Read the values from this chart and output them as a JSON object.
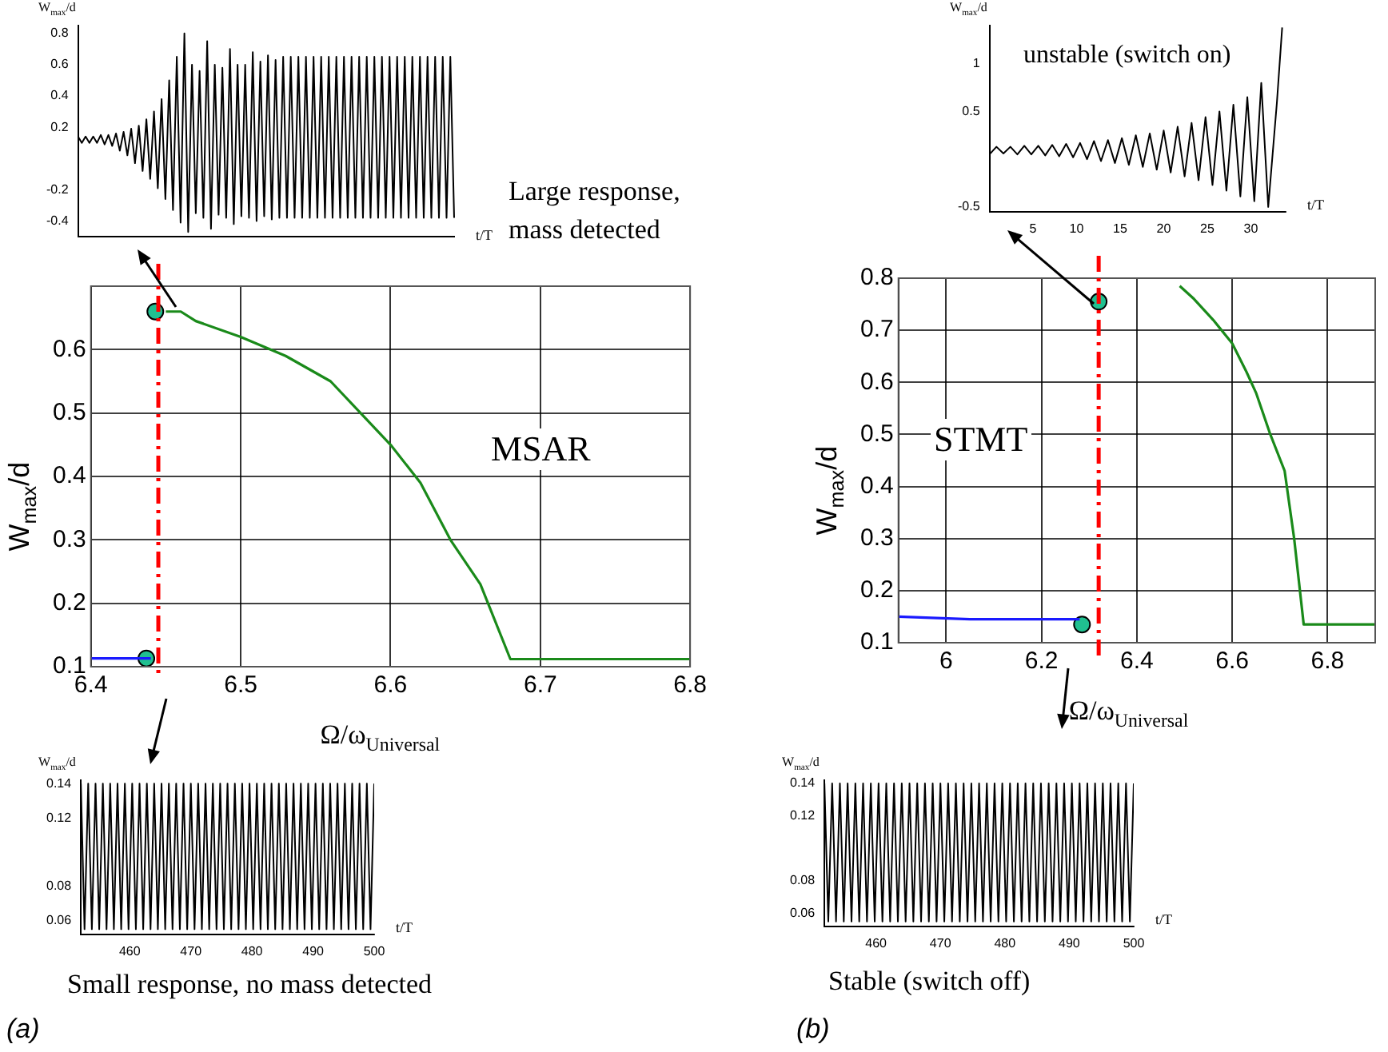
{
  "chart_data": [
    {
      "type": "line",
      "ylabel": "W$_{max}$/d",
      "xlabel": "t/T",
      "categories": [
        null,
        null,
        null,
        null,
        null,
        null,
        null,
        null,
        null,
        null,
        null,
        null,
        null,
        null,
        null,
        null,
        null,
        null,
        null,
        null,
        null,
        null,
        null,
        null,
        null,
        null,
        null,
        null,
        null,
        null,
        null,
        null,
        null,
        null,
        null,
        null,
        null,
        null,
        null,
        null,
        null,
        null,
        null,
        null,
        null,
        null,
        null,
        null,
        null,
        null,
        null,
        null,
        null,
        null,
        null,
        null,
        null,
        null,
        null,
        null,
        null,
        null,
        null,
        null,
        null,
        null,
        null,
        null,
        null,
        null,
        null,
        null,
        null,
        null,
        null,
        null,
        null,
        null,
        null,
        null,
        null,
        null,
        null,
        null,
        null,
        null,
        null,
        null,
        null,
        null,
        null,
        null,
        null,
        null,
        null,
        null,
        null,
        null,
        null,
        null
      ],
      "series": [
        {
          "color": "#000000",
          "marker": "none",
          "values": [
            0.14,
            0.1,
            0.14,
            0.1,
            0.14,
            0.1,
            0.15,
            0.09,
            0.15,
            0.08,
            0.16,
            0.05,
            0.17,
            0.02,
            0.19,
            -0.03,
            0.21,
            -0.08,
            0.25,
            -0.13,
            0.3,
            -0.19,
            0.38,
            -0.26,
            0.5,
            -0.33,
            0.65,
            -0.41,
            0.8,
            -0.47,
            0.6,
            -0.35,
            0.56,
            -0.38,
            0.75,
            -0.45,
            0.6,
            -0.36,
            0.58,
            -0.38,
            0.7,
            -0.42,
            0.6,
            -0.37,
            0.6,
            -0.38,
            0.68,
            -0.4,
            0.62,
            -0.37,
            0.66,
            -0.39,
            0.63,
            -0.38,
            0.65,
            -0.38,
            0.65,
            -0.38,
            0.65,
            -0.38,
            0.65,
            -0.38,
            0.65,
            -0.38,
            0.65,
            -0.38,
            0.65,
            -0.38,
            0.65,
            -0.38,
            0.65,
            -0.38,
            0.65,
            -0.38,
            0.65,
            -0.38,
            0.65,
            -0.38,
            0.65,
            -0.38,
            0.65,
            -0.38,
            0.65,
            -0.38,
            0.65,
            -0.38,
            0.65,
            -0.38,
            0.65,
            -0.38,
            0.65,
            -0.38,
            0.65,
            -0.38,
            0.65,
            -0.38,
            0.65,
            -0.38,
            0.65,
            -0.38
          ]
        }
      ],
      "ylim": [
        -0.5,
        0.85
      ],
      "yticks": [
        -0.4,
        -0.2,
        0.2,
        0.4,
        0.6,
        0.8
      ],
      "tick_labels": "y",
      "grid": false,
      "legend": false,
      "annotations": [
        "Large response, mass detected"
      ]
    },
    {
      "type": "line",
      "xlabel": "Ω/ω$_{Universal}$",
      "ylabel": "W$_{max}$/d",
      "series": [
        {
          "color": "#1a1aff",
          "marker": "none",
          "x": [
            6.4,
            6.44
          ],
          "values": [
            0.113,
            0.113
          ]
        },
        {
          "color": "#1a8a1a",
          "marker": "none",
          "x": [
            6.45,
            6.46,
            6.47,
            6.5,
            6.53,
            6.56,
            6.6,
            6.62,
            6.64,
            6.66,
            6.68,
            6.8
          ],
          "values": [
            0.66,
            0.66,
            0.645,
            0.62,
            0.59,
            0.55,
            0.45,
            0.39,
            0.3,
            0.23,
            0.112,
            0.112
          ]
        },
        {
          "type": "scatter",
          "color": "#20c090",
          "marker": "circle",
          "x": [
            6.443,
            6.437
          ],
          "values": [
            0.66,
            0.113
          ]
        }
      ],
      "xlim": [
        6.4,
        6.8
      ],
      "xticks": [
        6.4,
        6.5,
        6.6,
        6.7,
        6.8
      ],
      "ylim": [
        0.1,
        0.7
      ],
      "yticks": [
        0.1,
        0.2,
        0.3,
        0.4,
        0.5,
        0.6
      ],
      "grid": true,
      "legend": false,
      "ref_lines": [
        {
          "axis": "x",
          "value": 6.445,
          "color": "#ff0000",
          "line_style": "dashed"
        }
      ],
      "annotations": [
        "MSAR"
      ]
    },
    {
      "type": "line",
      "ylabel": "W$_{max}$/d",
      "xlabel": "t/T",
      "series": [
        {
          "color": "#000000",
          "marker": "none",
          "x": [
            452,
            452.6,
            453.2,
            453.8,
            454.4,
            455,
            455.6,
            456.2,
            456.8,
            457.4,
            458,
            458.6,
            459.2,
            459.8,
            460.4,
            461,
            461.6,
            462.2,
            462.8,
            463.4,
            464,
            464.6,
            465.2,
            465.8,
            466.4,
            467,
            467.6,
            468.2,
            468.8,
            469.4,
            470,
            470.6,
            471.2,
            471.8,
            472.4,
            473,
            473.6,
            474.2,
            474.8,
            475.4,
            476,
            476.6,
            477.2,
            477.8,
            478.4,
            479,
            479.6,
            480.2,
            480.8,
            481.4,
            482,
            482.6,
            483.2,
            483.8,
            484.4,
            485,
            485.6,
            486.2,
            486.8,
            487.4,
            488,
            488.6,
            489.2,
            489.8,
            490.4,
            491,
            491.6,
            492.2,
            492.8,
            493.4,
            494,
            494.6,
            495.2,
            495.8,
            496.4,
            497,
            497.6,
            498.2,
            498.8,
            499.4,
            500
          ],
          "values": [
            0.14,
            0.055,
            0.14,
            0.055,
            0.14,
            0.055,
            0.14,
            0.055,
            0.14,
            0.055,
            0.14,
            0.055,
            0.14,
            0.055,
            0.14,
            0.055,
            0.14,
            0.055,
            0.14,
            0.055,
            0.14,
            0.055,
            0.14,
            0.055,
            0.14,
            0.055,
            0.14,
            0.055,
            0.14,
            0.055,
            0.14,
            0.055,
            0.14,
            0.055,
            0.14,
            0.055,
            0.14,
            0.055,
            0.14,
            0.055,
            0.14,
            0.055,
            0.14,
            0.055,
            0.14,
            0.055,
            0.14,
            0.055,
            0.14,
            0.055,
            0.14,
            0.055,
            0.14,
            0.055,
            0.14,
            0.055,
            0.14,
            0.055,
            0.14,
            0.055,
            0.14,
            0.055,
            0.14,
            0.055,
            0.14,
            0.055,
            0.14,
            0.055,
            0.14,
            0.055,
            0.14,
            0.055,
            0.14,
            0.055,
            0.14,
            0.055,
            0.14,
            0.055,
            0.14,
            0.055,
            0.14
          ]
        }
      ],
      "xlim": [
        452,
        500
      ],
      "xticks": [
        460,
        470,
        480,
        490,
        500
      ],
      "ylim": [
        0.052,
        0.142
      ],
      "yticks": [
        0.06,
        0.08,
        0.12,
        0.14
      ],
      "grid": false,
      "legend": false,
      "annotations": [
        "Small response, no mass detected",
        "(a)"
      ]
    },
    {
      "type": "line",
      "ylabel": "W$_{max}$/d",
      "xlabel": "t/T",
      "series": [
        {
          "color": "#000000",
          "marker": "none",
          "x": [
            0,
            0.8,
            1.6,
            2.4,
            3.2,
            4,
            4.8,
            5.6,
            6.4,
            7.2,
            8,
            8.8,
            9.6,
            10.4,
            11.2,
            12,
            12.8,
            13.6,
            14.4,
            15.2,
            16,
            16.8,
            17.6,
            18.4,
            19.2,
            20,
            20.8,
            21.6,
            22.4,
            23.2,
            24,
            24.8,
            25.6,
            26.4,
            27.2,
            28,
            28.8,
            29.6,
            30.4,
            31.2,
            32,
            33,
            33.6
          ],
          "values": [
            0.05,
            0.13,
            0.06,
            0.13,
            0.05,
            0.14,
            0.05,
            0.14,
            0.04,
            0.15,
            0.03,
            0.16,
            0.02,
            0.17,
            0,
            0.19,
            -0.02,
            0.2,
            -0.04,
            0.22,
            -0.06,
            0.25,
            -0.08,
            0.27,
            -0.11,
            0.3,
            -0.14,
            0.34,
            -0.18,
            0.38,
            -0.22,
            0.44,
            -0.27,
            0.5,
            -0.33,
            0.57,
            -0.39,
            0.65,
            -0.44,
            0.8,
            -0.5,
            0.6,
            1.38
          ]
        }
      ],
      "xlim": [
        0,
        34
      ],
      "xticks": [
        5,
        10,
        15,
        20,
        25,
        30
      ],
      "ylim": [
        -0.55,
        1.4
      ],
      "yticks": [
        -0.5,
        0.5,
        1
      ],
      "grid": false,
      "legend": false,
      "annotations": [
        "unstable (switch on)"
      ]
    },
    {
      "type": "line",
      "xlabel": "Ω/ω$_{Universal}$",
      "ylabel": "W$_{max}$/d",
      "series": [
        {
          "color": "#1a1aff",
          "marker": "none",
          "x": [
            5.9,
            6.05,
            6.28
          ],
          "values": [
            0.15,
            0.145,
            0.145
          ]
        },
        {
          "color": "#1a8a1a",
          "marker": "none",
          "x": [
            6.49,
            6.52,
            6.56,
            6.6,
            6.63,
            6.65,
            6.68,
            6.71,
            6.73,
            6.75,
            6.9
          ],
          "values": [
            0.785,
            0.76,
            0.72,
            0.675,
            0.62,
            0.58,
            0.5,
            0.43,
            0.3,
            0.135,
            0.135
          ]
        },
        {
          "type": "scatter",
          "color": "#20c090",
          "marker": "circle",
          "x": [
            6.32,
            6.285
          ],
          "values": [
            0.755,
            0.135
          ]
        }
      ],
      "xlim": [
        5.9,
        6.9
      ],
      "xticks": [
        6,
        6.2,
        6.4,
        6.6,
        6.8
      ],
      "ylim": [
        0.1,
        0.8
      ],
      "yticks": [
        0.1,
        0.2,
        0.3,
        0.4,
        0.5,
        0.6,
        0.7,
        0.8
      ],
      "grid": true,
      "legend": false,
      "ref_lines": [
        {
          "axis": "x",
          "value": 6.32,
          "color": "#ff0000",
          "line_style": "dashed"
        }
      ],
      "annotations": [
        "STMT"
      ]
    },
    {
      "type": "line",
      "ylabel": "W$_{max}$/d",
      "xlabel": "t/T",
      "series": [
        {
          "color": "#000000",
          "marker": "none",
          "x": [
            452,
            452.6,
            453.2,
            453.8,
            454.4,
            455,
            455.6,
            456.2,
            456.8,
            457.4,
            458,
            458.6,
            459.2,
            459.8,
            460.4,
            461,
            461.6,
            462.2,
            462.8,
            463.4,
            464,
            464.6,
            465.2,
            465.8,
            466.4,
            467,
            467.6,
            468.2,
            468.8,
            469.4,
            470,
            470.6,
            471.2,
            471.8,
            472.4,
            473,
            473.6,
            474.2,
            474.8,
            475.4,
            476,
            476.6,
            477.2,
            477.8,
            478.4,
            479,
            479.6,
            480.2,
            480.8,
            481.4,
            482,
            482.6,
            483.2,
            483.8,
            484.4,
            485,
            485.6,
            486.2,
            486.8,
            487.4,
            488,
            488.6,
            489.2,
            489.8,
            490.4,
            491,
            491.6,
            492.2,
            492.8,
            493.4,
            494,
            494.6,
            495.2,
            495.8,
            496.4,
            497,
            497.6,
            498.2,
            498.8,
            499.4,
            500
          ],
          "values": [
            0.14,
            0.055,
            0.14,
            0.055,
            0.14,
            0.055,
            0.14,
            0.055,
            0.14,
            0.055,
            0.14,
            0.055,
            0.14,
            0.055,
            0.14,
            0.055,
            0.14,
            0.055,
            0.14,
            0.055,
            0.14,
            0.055,
            0.14,
            0.055,
            0.14,
            0.055,
            0.14,
            0.055,
            0.14,
            0.055,
            0.14,
            0.055,
            0.14,
            0.055,
            0.14,
            0.055,
            0.14,
            0.055,
            0.14,
            0.055,
            0.14,
            0.055,
            0.14,
            0.055,
            0.14,
            0.055,
            0.14,
            0.055,
            0.14,
            0.055,
            0.14,
            0.055,
            0.14,
            0.055,
            0.14,
            0.055,
            0.14,
            0.055,
            0.14,
            0.055,
            0.14,
            0.055,
            0.14,
            0.055,
            0.14,
            0.055,
            0.14,
            0.055,
            0.14,
            0.055,
            0.14,
            0.055,
            0.14,
            0.055,
            0.14,
            0.055,
            0.14,
            0.055,
            0.14,
            0.055,
            0.14
          ]
        }
      ],
      "xlim": [
        452,
        500
      ],
      "xticks": [
        460,
        470,
        480,
        490,
        500
      ],
      "ylim": [
        0.052,
        0.142
      ],
      "yticks": [
        0.06,
        0.08,
        0.12,
        0.14
      ],
      "grid": false,
      "legend": false,
      "annotations": [
        "Stable (switch off)",
        "(b)"
      ]
    }
  ]
}
